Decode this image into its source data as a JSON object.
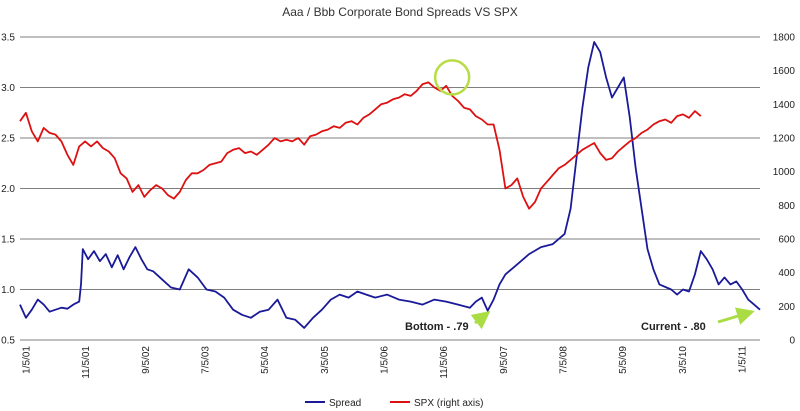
{
  "chart_data": {
    "type": "line",
    "title": "Aaa / Bbb Corporate Bond Spreads VS SPX",
    "x_tick_labels": [
      "1/5/01",
      "11/5/01",
      "9/5/02",
      "7/5/03",
      "5/5/04",
      "3/5/05",
      "1/5/06",
      "11/5/06",
      "9/5/07",
      "7/5/08",
      "5/5/09",
      "3/5/10",
      "1/5/11"
    ],
    "x_range_months": [
      0,
      125
    ],
    "left_axis": {
      "ylim": [
        0.5,
        3.5
      ],
      "ticks": [
        "0.5",
        "1.0",
        "1.5",
        "2.0",
        "2.5",
        "3.0",
        "3.5"
      ]
    },
    "right_axis": {
      "ylim": [
        0,
        1800
      ],
      "ticks": [
        "0",
        "200",
        "400",
        "600",
        "800",
        "1000",
        "1200",
        "1400",
        "1600",
        "1800"
      ]
    },
    "grid": true,
    "legend_position": "bottom-center",
    "series": [
      {
        "name": "Spread",
        "axis": "left",
        "color": "#1a1a99",
        "points": [
          [
            0,
            0.85
          ],
          [
            1,
            0.72
          ],
          [
            2,
            0.8
          ],
          [
            3,
            0.9
          ],
          [
            4,
            0.85
          ],
          [
            5,
            0.78
          ],
          [
            6,
            0.8
          ],
          [
            7,
            0.82
          ],
          [
            8,
            0.81
          ],
          [
            9,
            0.85
          ],
          [
            10,
            0.88
          ],
          [
            10.3,
            1.05
          ],
          [
            10.6,
            1.4
          ],
          [
            11.5,
            1.3
          ],
          [
            12.5,
            1.38
          ],
          [
            13.5,
            1.28
          ],
          [
            14.5,
            1.35
          ],
          [
            15.5,
            1.22
          ],
          [
            16.5,
            1.34
          ],
          [
            17.5,
            1.2
          ],
          [
            18.5,
            1.32
          ],
          [
            19.5,
            1.42
          ],
          [
            20.5,
            1.3
          ],
          [
            21.5,
            1.2
          ],
          [
            22.5,
            1.18
          ],
          [
            24,
            1.1
          ],
          [
            25.5,
            1.02
          ],
          [
            27,
            1.0
          ],
          [
            28.5,
            1.2
          ],
          [
            30,
            1.12
          ],
          [
            31.5,
            1.0
          ],
          [
            33,
            0.98
          ],
          [
            34.5,
            0.92
          ],
          [
            36,
            0.8
          ],
          [
            37.5,
            0.75
          ],
          [
            39,
            0.72
          ],
          [
            40.5,
            0.78
          ],
          [
            42,
            0.8
          ],
          [
            43.5,
            0.9
          ],
          [
            45,
            0.72
          ],
          [
            46.5,
            0.7
          ],
          [
            48,
            0.62
          ],
          [
            49.5,
            0.72
          ],
          [
            51,
            0.8
          ],
          [
            52.5,
            0.9
          ],
          [
            54,
            0.95
          ],
          [
            55.5,
            0.92
          ],
          [
            57,
            0.98
          ],
          [
            58.5,
            0.95
          ],
          [
            60,
            0.92
          ],
          [
            62,
            0.95
          ],
          [
            64,
            0.9
          ],
          [
            66,
            0.88
          ],
          [
            68,
            0.85
          ],
          [
            70,
            0.9
          ],
          [
            72,
            0.88
          ],
          [
            74,
            0.85
          ],
          [
            76,
            0.82
          ],
          [
            77,
            0.88
          ],
          [
            78,
            0.92
          ],
          [
            79,
            0.79
          ],
          [
            80,
            0.9
          ],
          [
            81,
            1.05
          ],
          [
            82,
            1.15
          ],
          [
            84,
            1.25
          ],
          [
            86,
            1.35
          ],
          [
            88,
            1.42
          ],
          [
            90,
            1.45
          ],
          [
            92,
            1.55
          ],
          [
            93,
            1.8
          ],
          [
            94,
            2.3
          ],
          [
            95,
            2.8
          ],
          [
            96,
            3.2
          ],
          [
            97,
            3.45
          ],
          [
            98,
            3.35
          ],
          [
            99,
            3.1
          ],
          [
            100,
            2.9
          ],
          [
            101,
            3.0
          ],
          [
            102,
            3.1
          ],
          [
            103,
            2.7
          ],
          [
            104,
            2.2
          ],
          [
            105,
            1.8
          ],
          [
            106,
            1.4
          ],
          [
            107,
            1.2
          ],
          [
            108,
            1.05
          ],
          [
            110,
            1.0
          ],
          [
            111,
            0.95
          ],
          [
            112,
            1.0
          ],
          [
            113,
            0.98
          ],
          [
            114,
            1.15
          ],
          [
            115,
            1.38
          ],
          [
            116,
            1.3
          ],
          [
            117,
            1.2
          ],
          [
            118,
            1.05
          ],
          [
            119,
            1.12
          ],
          [
            120,
            1.05
          ],
          [
            121,
            1.08
          ],
          [
            122,
            1.0
          ],
          [
            123,
            0.9
          ],
          [
            124,
            0.85
          ],
          [
            125,
            0.8
          ]
        ]
      },
      {
        "name": "SPX (right axis)",
        "axis": "right",
        "color": "#dd1111",
        "points": [
          [
            0,
            1300
          ],
          [
            1,
            1350
          ],
          [
            2,
            1240
          ],
          [
            3,
            1180
          ],
          [
            4,
            1260
          ],
          [
            5,
            1230
          ],
          [
            6,
            1220
          ],
          [
            7,
            1180
          ],
          [
            8,
            1100
          ],
          [
            9,
            1040
          ],
          [
            10,
            1150
          ],
          [
            11,
            1180
          ],
          [
            12,
            1150
          ],
          [
            13,
            1180
          ],
          [
            14,
            1140
          ],
          [
            15,
            1120
          ],
          [
            16,
            1080
          ],
          [
            17,
            990
          ],
          [
            18,
            960
          ],
          [
            19,
            880
          ],
          [
            20,
            920
          ],
          [
            21,
            850
          ],
          [
            22,
            890
          ],
          [
            23,
            920
          ],
          [
            24,
            900
          ],
          [
            25,
            860
          ],
          [
            26,
            840
          ],
          [
            27,
            880
          ],
          [
            28,
            950
          ],
          [
            29,
            990
          ],
          [
            30,
            990
          ],
          [
            31,
            1010
          ],
          [
            32,
            1040
          ],
          [
            33,
            1050
          ],
          [
            34,
            1060
          ],
          [
            35,
            1110
          ],
          [
            36,
            1130
          ],
          [
            37,
            1140
          ],
          [
            38,
            1110
          ],
          [
            39,
            1120
          ],
          [
            40,
            1100
          ],
          [
            41,
            1130
          ],
          [
            42,
            1160
          ],
          [
            43,
            1200
          ],
          [
            44,
            1180
          ],
          [
            45,
            1190
          ],
          [
            46,
            1180
          ],
          [
            47,
            1200
          ],
          [
            48,
            1160
          ],
          [
            49,
            1210
          ],
          [
            50,
            1220
          ],
          [
            51,
            1240
          ],
          [
            52,
            1250
          ],
          [
            53,
            1270
          ],
          [
            54,
            1260
          ],
          [
            55,
            1290
          ],
          [
            56,
            1300
          ],
          [
            57,
            1280
          ],
          [
            58,
            1320
          ],
          [
            59,
            1340
          ],
          [
            60,
            1370
          ],
          [
            61,
            1400
          ],
          [
            62,
            1410
          ],
          [
            63,
            1430
          ],
          [
            64,
            1440
          ],
          [
            65,
            1460
          ],
          [
            66,
            1450
          ],
          [
            67,
            1480
          ],
          [
            68,
            1520
          ],
          [
            69,
            1530
          ],
          [
            70,
            1500
          ],
          [
            71,
            1480
          ],
          [
            72,
            1510
          ],
          [
            73,
            1450
          ],
          [
            74,
            1420
          ],
          [
            75,
            1380
          ],
          [
            76,
            1370
          ],
          [
            77,
            1330
          ],
          [
            78,
            1310
          ],
          [
            79,
            1280
          ],
          [
            80,
            1280
          ],
          [
            81,
            1130
          ],
          [
            82,
            900
          ],
          [
            83,
            920
          ],
          [
            84,
            960
          ],
          [
            85,
            850
          ],
          [
            86,
            780
          ],
          [
            87,
            820
          ],
          [
            88,
            900
          ],
          [
            89,
            940
          ],
          [
            90,
            980
          ],
          [
            91,
            1020
          ],
          [
            92,
            1040
          ],
          [
            93,
            1070
          ],
          [
            94,
            1100
          ],
          [
            95,
            1130
          ],
          [
            96,
            1150
          ],
          [
            97,
            1170
          ],
          [
            98,
            1110
          ],
          [
            99,
            1070
          ],
          [
            100,
            1080
          ],
          [
            101,
            1120
          ],
          [
            102,
            1150
          ],
          [
            103,
            1180
          ],
          [
            104,
            1200
          ],
          [
            105,
            1230
          ],
          [
            106,
            1250
          ],
          [
            107,
            1280
          ],
          [
            108,
            1300
          ],
          [
            109,
            1310
          ],
          [
            110,
            1290
          ],
          [
            111,
            1330
          ],
          [
            112,
            1340
          ],
          [
            113,
            1320
          ],
          [
            114,
            1360
          ],
          [
            115,
            1330
          ]
        ]
      }
    ],
    "annotations": [
      {
        "text": "Bottom - .79",
        "target_month": 79,
        "target_value": 0.79
      },
      {
        "text": "Current - .80",
        "target_month": 124.5,
        "target_value": 0.8
      }
    ],
    "highlight_circle": {
      "center_month": 73,
      "center_spx": 1560
    }
  }
}
